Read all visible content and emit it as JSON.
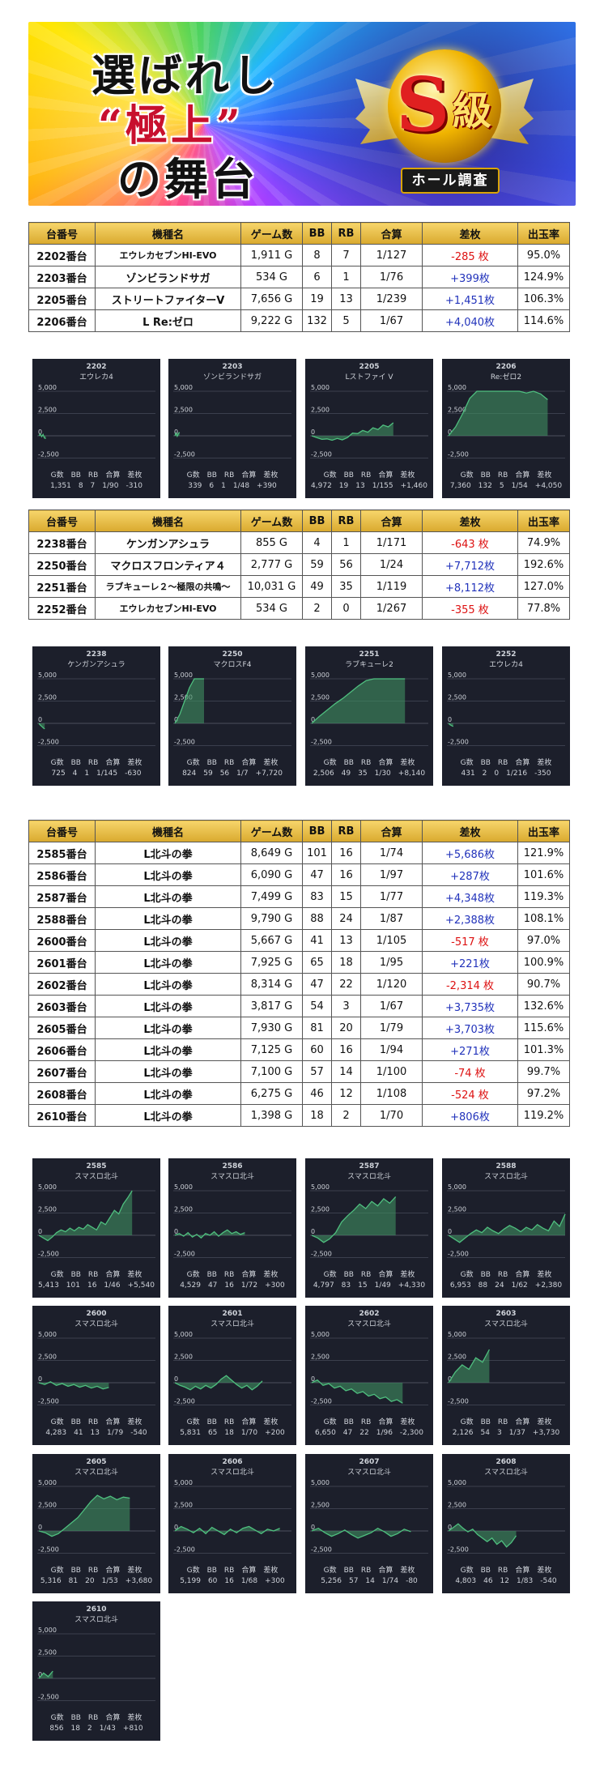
{
  "banner": {
    "line1": "選ばれし",
    "line2": "“極上”",
    "line3": "の舞台",
    "badge_s": "S",
    "badge_kyu": "級",
    "badge_sub": "ホール調査"
  },
  "headers": {
    "dai": "台番号",
    "kishu": "機種名",
    "games": "ゲーム数",
    "bb": "BB",
    "rb": "RB",
    "gassan": "合算",
    "sa": "差枚",
    "rate": "出玉率"
  },
  "table1": [
    {
      "dai": "2202番台",
      "kishu": "エウレカセブンHI-EVO",
      "games": "1,911 G",
      "bb": "8",
      "rb": "7",
      "gassan": "1/127",
      "sa": "-285 枚",
      "rate": "95.0%"
    },
    {
      "dai": "2203番台",
      "kishu": "ゾンビランドサガ",
      "games": "534 G",
      "bb": "6",
      "rb": "1",
      "gassan": "1/76",
      "sa": "+399枚",
      "rate": "124.9%"
    },
    {
      "dai": "2205番台",
      "kishu": "ストリートファイターV",
      "games": "7,656 G",
      "bb": "19",
      "rb": "13",
      "gassan": "1/239",
      "sa": "+1,451枚",
      "rate": "106.3%"
    },
    {
      "dai": "2206番台",
      "kishu": "L Re:ゼロ",
      "games": "9,222 G",
      "bb": "132",
      "rb": "5",
      "gassan": "1/67",
      "sa": "+4,040枚",
      "rate": "114.6%"
    }
  ],
  "table2": [
    {
      "dai": "2238番台",
      "kishu": "ケンガンアシュラ",
      "games": "855 G",
      "bb": "4",
      "rb": "1",
      "gassan": "1/171",
      "sa": "-643 枚",
      "rate": "74.9%"
    },
    {
      "dai": "2250番台",
      "kishu": "マクロスフロンティア４",
      "games": "2,777 G",
      "bb": "59",
      "rb": "56",
      "gassan": "1/24",
      "sa": "+7,712枚",
      "rate": "192.6%"
    },
    {
      "dai": "2251番台",
      "kishu": "ラブキューレ２〜極限の共鳴〜",
      "games": "10,031 G",
      "bb": "49",
      "rb": "35",
      "gassan": "1/119",
      "sa": "+8,112枚",
      "rate": "127.0%"
    },
    {
      "dai": "2252番台",
      "kishu": "エウレカセブンHI-EVO",
      "games": "534 G",
      "bb": "2",
      "rb": "0",
      "gassan": "1/267",
      "sa": "-355 枚",
      "rate": "77.8%"
    }
  ],
  "table3": [
    {
      "dai": "2585番台",
      "kishu": "L北斗の拳",
      "games": "8,649 G",
      "bb": "101",
      "rb": "16",
      "gassan": "1/74",
      "sa": "+5,686枚",
      "rate": "121.9%"
    },
    {
      "dai": "2586番台",
      "kishu": "L北斗の拳",
      "games": "6,090 G",
      "bb": "47",
      "rb": "16",
      "gassan": "1/97",
      "sa": "+287枚",
      "rate": "101.6%"
    },
    {
      "dai": "2587番台",
      "kishu": "L北斗の拳",
      "games": "7,499 G",
      "bb": "83",
      "rb": "15",
      "gassan": "1/77",
      "sa": "+4,348枚",
      "rate": "119.3%"
    },
    {
      "dai": "2588番台",
      "kishu": "L北斗の拳",
      "games": "9,790 G",
      "bb": "88",
      "rb": "24",
      "gassan": "1/87",
      "sa": "+2,388枚",
      "rate": "108.1%"
    },
    {
      "dai": "2600番台",
      "kishu": "L北斗の拳",
      "games": "5,667 G",
      "bb": "41",
      "rb": "13",
      "gassan": "1/105",
      "sa": "-517 枚",
      "rate": "97.0%"
    },
    {
      "dai": "2601番台",
      "kishu": "L北斗の拳",
      "games": "7,925 G",
      "bb": "65",
      "rb": "18",
      "gassan": "1/95",
      "sa": "+221枚",
      "rate": "100.9%"
    },
    {
      "dai": "2602番台",
      "kishu": "L北斗の拳",
      "games": "8,314 G",
      "bb": "47",
      "rb": "22",
      "gassan": "1/120",
      "sa": "-2,314 枚",
      "rate": "90.7%"
    },
    {
      "dai": "2603番台",
      "kishu": "L北斗の拳",
      "games": "3,817 G",
      "bb": "54",
      "rb": "3",
      "gassan": "1/67",
      "sa": "+3,735枚",
      "rate": "132.6%"
    },
    {
      "dai": "2605番台",
      "kishu": "L北斗の拳",
      "games": "7,930 G",
      "bb": "81",
      "rb": "20",
      "gassan": "1/79",
      "sa": "+3,703枚",
      "rate": "115.6%"
    },
    {
      "dai": "2606番台",
      "kishu": "L北斗の拳",
      "games": "7,125 G",
      "bb": "60",
      "rb": "16",
      "gassan": "1/94",
      "sa": "+271枚",
      "rate": "101.3%"
    },
    {
      "dai": "2607番台",
      "kishu": "L北斗の拳",
      "games": "7,100 G",
      "bb": "57",
      "rb": "14",
      "gassan": "1/100",
      "sa": "-74 枚",
      "rate": "99.7%"
    },
    {
      "dai": "2608番台",
      "kishu": "L北斗の拳",
      "games": "6,275 G",
      "bb": "46",
      "rb": "12",
      "gassan": "1/108",
      "sa": "-524 枚",
      "rate": "97.2%"
    },
    {
      "dai": "2610番台",
      "kishu": "L北斗の拳",
      "games": "1,398 G",
      "bb": "18",
      "rb": "2",
      "gassan": "1/70",
      "sa": "+806枚",
      "rate": "119.2%"
    }
  ],
  "graph_labels": {
    "axis_top": "5,000",
    "axis_mid": "2,500",
    "axis_zero": "0",
    "axis_bottom": "-2,500",
    "footer_head": "G数　BB　RB　合算　差枚"
  },
  "colors": {
    "card_bg": "#1c1f2b",
    "line": "#4fbf7f",
    "fill": "#3f8f60",
    "pos": "#2233bb",
    "neg": "#dd1111"
  },
  "graphs1": [
    {
      "no": "2202",
      "name": "エウレカ4",
      "stats": "1,351　8　7　1/90　-310",
      "series": [
        0,
        200,
        -100,
        150,
        -250,
        -310
      ],
      "end": 0.06
    },
    {
      "no": "2203",
      "name": "ゾンビランドサガ",
      "stats": "339　6　1　1/48　+390",
      "series": [
        0,
        300,
        -50,
        250,
        390
      ],
      "end": 0.04
    },
    {
      "no": "2205",
      "name": "Lストファイ V",
      "stats": "4,972　19　13　1/155　+1,460",
      "series": [
        0,
        -200,
        -400,
        -350,
        -500,
        -300,
        -450,
        -200,
        300,
        250,
        600,
        400,
        900,
        700,
        1200,
        1000,
        1460
      ],
      "end": 0.7
    },
    {
      "no": "2206",
      "name": "Re:ゼロ2",
      "stats": "7,360　132　5　1/54　+4,050",
      "series": [
        0,
        1000,
        2500,
        4200,
        5000,
        5000,
        5000,
        5000,
        5000,
        5000,
        5000,
        4800,
        5000,
        4700,
        4050
      ],
      "end": 0.85
    }
  ],
  "graphs2": [
    {
      "no": "2238",
      "name": "ケンガンアシュラ",
      "stats": "725　4　1　1/145　-630",
      "series": [
        0,
        -200,
        -350,
        -500,
        -630
      ],
      "end": 0.05
    },
    {
      "no": "2250",
      "name": "マクロスF4",
      "stats": "824　59　56　1/7　+7,720",
      "series": [
        0,
        1000,
        2500,
        4000,
        5000,
        5000,
        5000
      ],
      "end": 0.25
    },
    {
      "no": "2251",
      "name": "ラブキューレ2",
      "stats": "2,506　49　35　1/30　+8,140",
      "series": [
        0,
        800,
        1500,
        2200,
        2800,
        3500,
        4200,
        4800,
        5000,
        5000,
        5000,
        5000,
        5000
      ],
      "end": 0.8
    },
    {
      "no": "2252",
      "name": "エウレカ4",
      "stats": "431　2　0　1/216　-350",
      "series": [
        0,
        -150,
        -250,
        -350
      ],
      "end": 0.04
    }
  ],
  "graphs3": [
    {
      "no": "2585",
      "name": "スマスロ北斗",
      "stats": "5,413　101　16　1/46　+5,540",
      "series": [
        0,
        -300,
        -600,
        -200,
        300,
        600,
        400,
        800,
        500,
        900,
        700,
        1200,
        900,
        600,
        1500,
        1200,
        2000,
        2800,
        2400,
        3500,
        4200,
        5000
      ],
      "end": 0.8
    },
    {
      "no": "2586",
      "name": "スマスロ北斗",
      "stats": "4,529　47　16　1/72　+300",
      "series": [
        0,
        200,
        -100,
        300,
        -200,
        100,
        -300,
        200,
        0,
        400,
        -100,
        300,
        600,
        200,
        400,
        100,
        300
      ],
      "end": 0.6
    },
    {
      "no": "2587",
      "name": "スマスロ北斗",
      "stats": "4,797　83　15　1/49　+4,330",
      "series": [
        0,
        -300,
        -800,
        -400,
        300,
        1500,
        2200,
        2800,
        3500,
        3000,
        3800,
        3300,
        4100,
        3600,
        4330
      ],
      "end": 0.72
    },
    {
      "no": "2588",
      "name": "スマスロ北斗",
      "stats": "6,953　88　24　1/62　+2,380",
      "series": [
        0,
        -400,
        -800,
        -300,
        200,
        600,
        300,
        900,
        500,
        200,
        700,
        1100,
        800,
        400,
        900,
        600,
        1200,
        800,
        500,
        1600,
        1000,
        2380
      ],
      "end": 1.0
    },
    {
      "no": "2600",
      "name": "スマスロ北斗",
      "stats": "4,283　41　13　1/79　-540",
      "series": [
        0,
        -200,
        100,
        -300,
        -100,
        -400,
        -200,
        -500,
        -300,
        -600,
        -400,
        -700,
        -540
      ],
      "end": 0.6
    },
    {
      "no": "2601",
      "name": "スマスロ北斗",
      "stats": "5,831　65　18　1/70　+200",
      "series": [
        0,
        -300,
        -500,
        -800,
        -400,
        -700,
        -300,
        -600,
        -200,
        400,
        800,
        300,
        -200,
        -600,
        -300,
        -800,
        -400,
        200
      ],
      "end": 0.75
    },
    {
      "no": "2602",
      "name": "スマスロ北斗",
      "stats": "6,650　47　22　1/96　-2,300",
      "series": [
        0,
        300,
        -300,
        -100,
        -600,
        -400,
        -900,
        -700,
        -1200,
        -1000,
        -1500,
        -1300,
        -1800,
        -1600,
        -2100,
        -1900,
        -2300
      ],
      "end": 0.78
    },
    {
      "no": "2603",
      "name": "スマスロ北斗",
      "stats": "2,126　54　3　1/37　+3,730",
      "series": [
        0,
        1200,
        2000,
        1500,
        2800,
        2300,
        3730
      ],
      "end": 0.35
    },
    {
      "no": "2605",
      "name": "スマスロ北斗",
      "stats": "5,316　81　20　1/53　+3,680",
      "series": [
        0,
        -200,
        -600,
        -300,
        300,
        900,
        1500,
        2400,
        3300,
        4000,
        3600,
        3900,
        3500,
        3800,
        3680
      ],
      "end": 0.78
    },
    {
      "no": "2606",
      "name": "スマスロ北斗",
      "stats": "5,199　60　16　1/68　+300",
      "series": [
        0,
        500,
        200,
        -200,
        300,
        -300,
        400,
        0,
        -400,
        200,
        -200,
        300,
        500,
        100,
        -300,
        200,
        0,
        300
      ],
      "end": 0.9
    },
    {
      "no": "2607",
      "name": "スマスロ北斗",
      "stats": "5,256　57　14　1/74　-80",
      "series": [
        0,
        300,
        -200,
        -600,
        -300,
        100,
        -400,
        -800,
        -500,
        -200,
        300,
        -100,
        -600,
        -300,
        200,
        -80
      ],
      "end": 0.85
    },
    {
      "no": "2608",
      "name": "スマスロ北斗",
      "stats": "4,803　46　12　1/83　-540",
      "series": [
        0,
        400,
        800,
        300,
        -100,
        200,
        -400,
        -800,
        -1200,
        -800,
        -1500,
        -1100,
        -1800,
        -1300,
        -540
      ],
      "end": 0.58
    },
    {
      "no": "2610",
      "name": "スマスロ北斗",
      "stats": "856　18　2　1/43　+810",
      "series": [
        0,
        600,
        200,
        810
      ],
      "end": 0.12
    }
  ]
}
